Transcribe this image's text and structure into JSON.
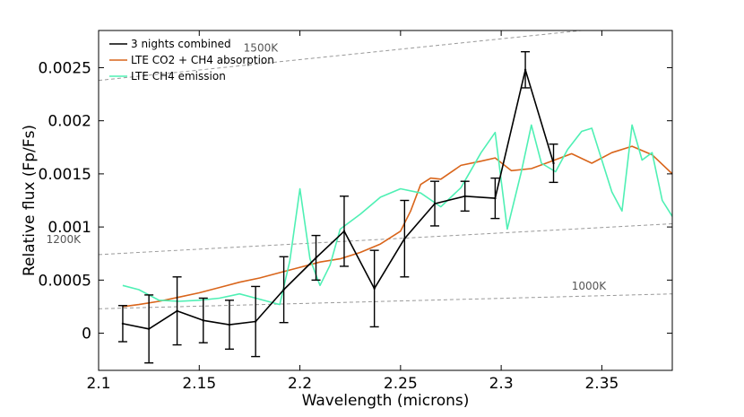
{
  "chart_data": {
    "type": "line",
    "xlabel": "Wavelength (microns)",
    "ylabel": "Relative flux (Fp/Fs)",
    "xlim": [
      2.1,
      2.385
    ],
    "ylim": [
      -0.00035,
      0.00285
    ],
    "xticks": [
      2.1,
      2.15,
      2.2,
      2.25,
      2.3,
      2.35
    ],
    "xtick_labels": [
      "2.1",
      "2.15",
      "2.2",
      "2.25",
      "2.3",
      "2.35"
    ],
    "yticks": [
      0,
      0.0005,
      0.001,
      0.0015,
      0.002,
      0.0025
    ],
    "ytick_labels": [
      "0",
      "0.0005",
      "0.001",
      "0.0015",
      "0.002",
      "0.0025"
    ],
    "legend_position": "top-left",
    "series": [
      {
        "name": "3 nights combined",
        "color": "#000000",
        "x": [
          2.112,
          2.125,
          2.139,
          2.152,
          2.165,
          2.178,
          2.192,
          2.208,
          2.222,
          2.237,
          2.252,
          2.267,
          2.282,
          2.297,
          2.312,
          2.326
        ],
        "values": [
          9e-05,
          4e-05,
          0.00021,
          0.00012,
          8e-05,
          0.00011,
          0.00041,
          0.00071,
          0.00096,
          0.00042,
          0.00089,
          0.00122,
          0.00129,
          0.00127,
          0.00248,
          0.0016
        ],
        "yerr": [
          0.00017,
          0.00032,
          0.00032,
          0.00021,
          0.00023,
          0.00033,
          0.00031,
          0.00021,
          0.00033,
          0.00036,
          0.00036,
          0.00021,
          0.00014,
          0.00019,
          0.00017,
          0.00018
        ]
      },
      {
        "name": "LTE CO2 + CH4 absorption",
        "color": "#d9651b",
        "x": [
          2.112,
          2.12,
          2.13,
          2.14,
          2.15,
          2.16,
          2.17,
          2.18,
          2.19,
          2.2,
          2.21,
          2.22,
          2.23,
          2.24,
          2.25,
          2.255,
          2.26,
          2.265,
          2.27,
          2.28,
          2.29,
          2.297,
          2.305,
          2.315,
          2.325,
          2.335,
          2.345,
          2.355,
          2.365,
          2.375,
          2.385
        ],
        "values": [
          0.00025,
          0.00027,
          0.0003,
          0.00034,
          0.00038,
          0.00043,
          0.00048,
          0.00052,
          0.00057,
          0.00062,
          0.00067,
          0.0007,
          0.00076,
          0.00084,
          0.00096,
          0.00115,
          0.0014,
          0.00146,
          0.00145,
          0.00158,
          0.00162,
          0.00165,
          0.00153,
          0.00155,
          0.00162,
          0.00169,
          0.0016,
          0.0017,
          0.00176,
          0.00168,
          0.0015
        ]
      },
      {
        "name": "LTE CH4 emission",
        "color": "#4ff0b4",
        "x": [
          2.112,
          2.12,
          2.13,
          2.14,
          2.15,
          2.16,
          2.17,
          2.18,
          2.19,
          2.195,
          2.2,
          2.205,
          2.21,
          2.215,
          2.22,
          2.23,
          2.24,
          2.25,
          2.26,
          2.27,
          2.28,
          2.29,
          2.297,
          2.303,
          2.31,
          2.315,
          2.32,
          2.327,
          2.333,
          2.34,
          2.345,
          2.355,
          2.36,
          2.365,
          2.37,
          2.375,
          2.38,
          2.385
        ],
        "values": [
          0.00045,
          0.00041,
          0.00031,
          0.0003,
          0.00031,
          0.00033,
          0.00037,
          0.00032,
          0.00027,
          0.00068,
          0.00136,
          0.0007,
          0.00045,
          0.00064,
          0.00098,
          0.00112,
          0.00128,
          0.00136,
          0.00132,
          0.00119,
          0.00137,
          0.0017,
          0.00189,
          0.00098,
          0.00152,
          0.00196,
          0.0016,
          0.00152,
          0.00173,
          0.0019,
          0.00193,
          0.00133,
          0.00115,
          0.00196,
          0.00163,
          0.0017,
          0.00125,
          0.0011
        ]
      }
    ],
    "reference_lines": [
      {
        "label": "1500K",
        "x": [
          2.1,
          2.34
        ],
        "values": [
          0.00238,
          0.00285
        ],
        "label_at": [
          2.172,
          0.00265
        ]
      },
      {
        "label": "1200K",
        "x": [
          2.1,
          2.385
        ],
        "values": [
          0.00074,
          0.00103
        ],
        "label_at": [
          2.074,
          0.00085
        ]
      },
      {
        "label": "1000K",
        "x": [
          2.1,
          2.385
        ],
        "values": [
          0.00023,
          0.00037
        ],
        "label_at": [
          2.335,
          0.00041
        ]
      }
    ],
    "reference_line_color": "#999999"
  }
}
